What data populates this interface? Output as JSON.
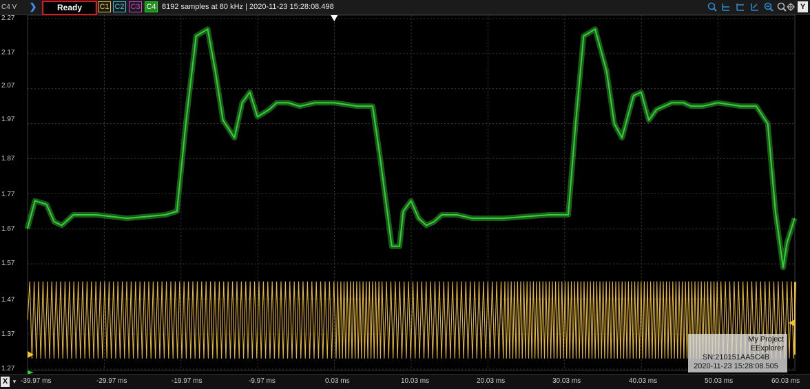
{
  "toolbar": {
    "unit_label": "C4 V",
    "menu_glyph": "❯",
    "status": "Ready",
    "channels": [
      "C1",
      "C2",
      "C3",
      "C4"
    ],
    "info": "8192 samples at 80 kHz | 2020-11-23 15:28:08.498",
    "icons": [
      "zoom-in-icon",
      "zoom-x-icon",
      "zoom-y-icon",
      "zoom-xy-icon",
      "zoom-out-icon",
      "zoom-fit-icon",
      "target-icon"
    ],
    "y_button": "Y"
  },
  "colors": {
    "c1": "#f2c12e",
    "c2": "#37c8e8",
    "c3": "#e23bd6",
    "c4": "#2fd42f",
    "status_border": "#e0181e"
  },
  "y_axis": {
    "labels": [
      "2.27",
      "2.17",
      "2.07",
      "1.97",
      "1.87",
      "1.77",
      "1.67",
      "1.57",
      "1.47",
      "1.37",
      "1.27"
    ]
  },
  "x_axis": {
    "button": "X",
    "labels": [
      "-39.97 ms",
      "-29.97 ms",
      "-19.97 ms",
      "-9.97 ms",
      "0.03 ms",
      "10.03 ms",
      "20.03 ms",
      "30.03 ms",
      "40.03 ms",
      "50.03 ms",
      "60.03 ms"
    ]
  },
  "watermark": {
    "project": "My Project",
    "app": "EExplorer",
    "serial": "SN:210151AA5C4B",
    "timestamp": "2020-11-23 15:28:08.505"
  },
  "chart_data": {
    "type": "line",
    "ylim": [
      1.27,
      2.27
    ],
    "xlim": [
      -39.97,
      60.03
    ],
    "grid": true,
    "series": [
      {
        "name": "C4",
        "x": [
          -40,
          -39,
          -37.5,
          -36.5,
          -35.5,
          -35,
          -34,
          -33,
          -31,
          -27,
          -22,
          -20.5,
          -19.3,
          -18,
          -16.5,
          -15.5,
          -14.5,
          -13,
          -12,
          -11,
          -10,
          -8.5,
          -7.5,
          -6,
          -4.5,
          -2.5,
          0,
          3,
          5,
          6,
          7.5,
          8.5,
          9,
          10,
          11,
          12,
          13,
          14,
          15,
          16,
          18,
          22,
          28,
          30.5,
          31.5,
          32.5,
          34,
          35.5,
          36.5,
          37.5,
          39,
          40,
          41,
          42,
          44,
          45.5,
          46.5,
          48,
          50,
          53,
          55,
          56.5,
          57.5,
          58.5,
          59,
          60
        ],
        "y": [
          1.67,
          1.75,
          1.74,
          1.69,
          1.68,
          1.69,
          1.71,
          1.71,
          1.71,
          1.7,
          1.71,
          1.72,
          1.98,
          2.22,
          2.24,
          2.12,
          1.98,
          1.93,
          2.03,
          2.06,
          1.99,
          2.01,
          2.03,
          2.03,
          2.02,
          2.03,
          2.03,
          2.02,
          2.02,
          1.87,
          1.62,
          1.62,
          1.72,
          1.75,
          1.7,
          1.68,
          1.69,
          1.71,
          1.71,
          1.71,
          1.7,
          1.7,
          1.71,
          1.71,
          1.98,
          2.22,
          2.24,
          2.12,
          1.97,
          1.93,
          2.05,
          2.06,
          1.98,
          2.01,
          2.03,
          2.03,
          2.02,
          2.02,
          2.03,
          2.02,
          2.02,
          1.97,
          1.72,
          1.56,
          1.63,
          1.7
        ]
      },
      {
        "name": "C1",
        "band_min": 1.3,
        "band_max": 1.52,
        "description": "dense high-frequency oscillation"
      }
    ]
  }
}
